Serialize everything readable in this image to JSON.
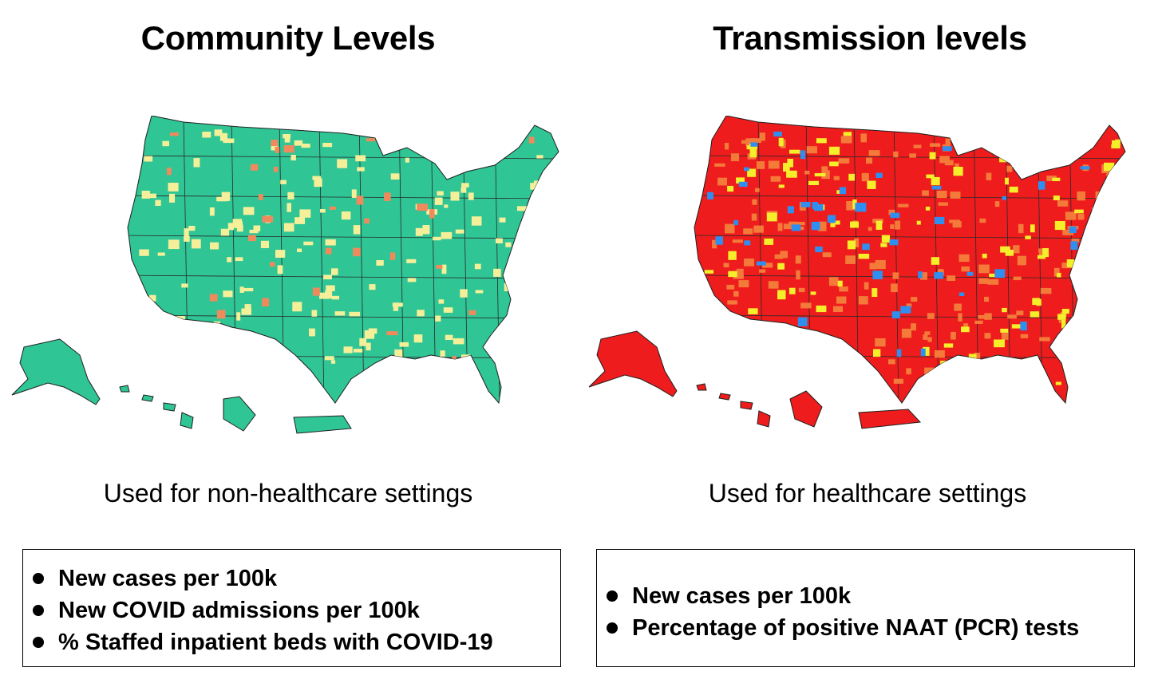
{
  "panels": [
    {
      "title": "Community Levels",
      "subtitle": "Used for non-healthcare settings",
      "bullets": [
        "New cases per 100k",
        "New COVID admissions per 100k",
        "% Staffed inpatient beds with COVID-19"
      ],
      "map_colors": {
        "base": "#2fc595",
        "accent1": "#f6ef9a",
        "accent2": "#f08a5c"
      }
    },
    {
      "title": "Transmission levels",
      "subtitle": "Used for healthcare settings",
      "bullets": [
        "New cases per 100k",
        "Percentage of positive NAAT (PCR) tests"
      ],
      "map_colors": {
        "base": "#ee1c1c",
        "accent1": "#f4ef2a",
        "accent2": "#f47a3a",
        "accent3": "#2f8ff0"
      }
    }
  ]
}
